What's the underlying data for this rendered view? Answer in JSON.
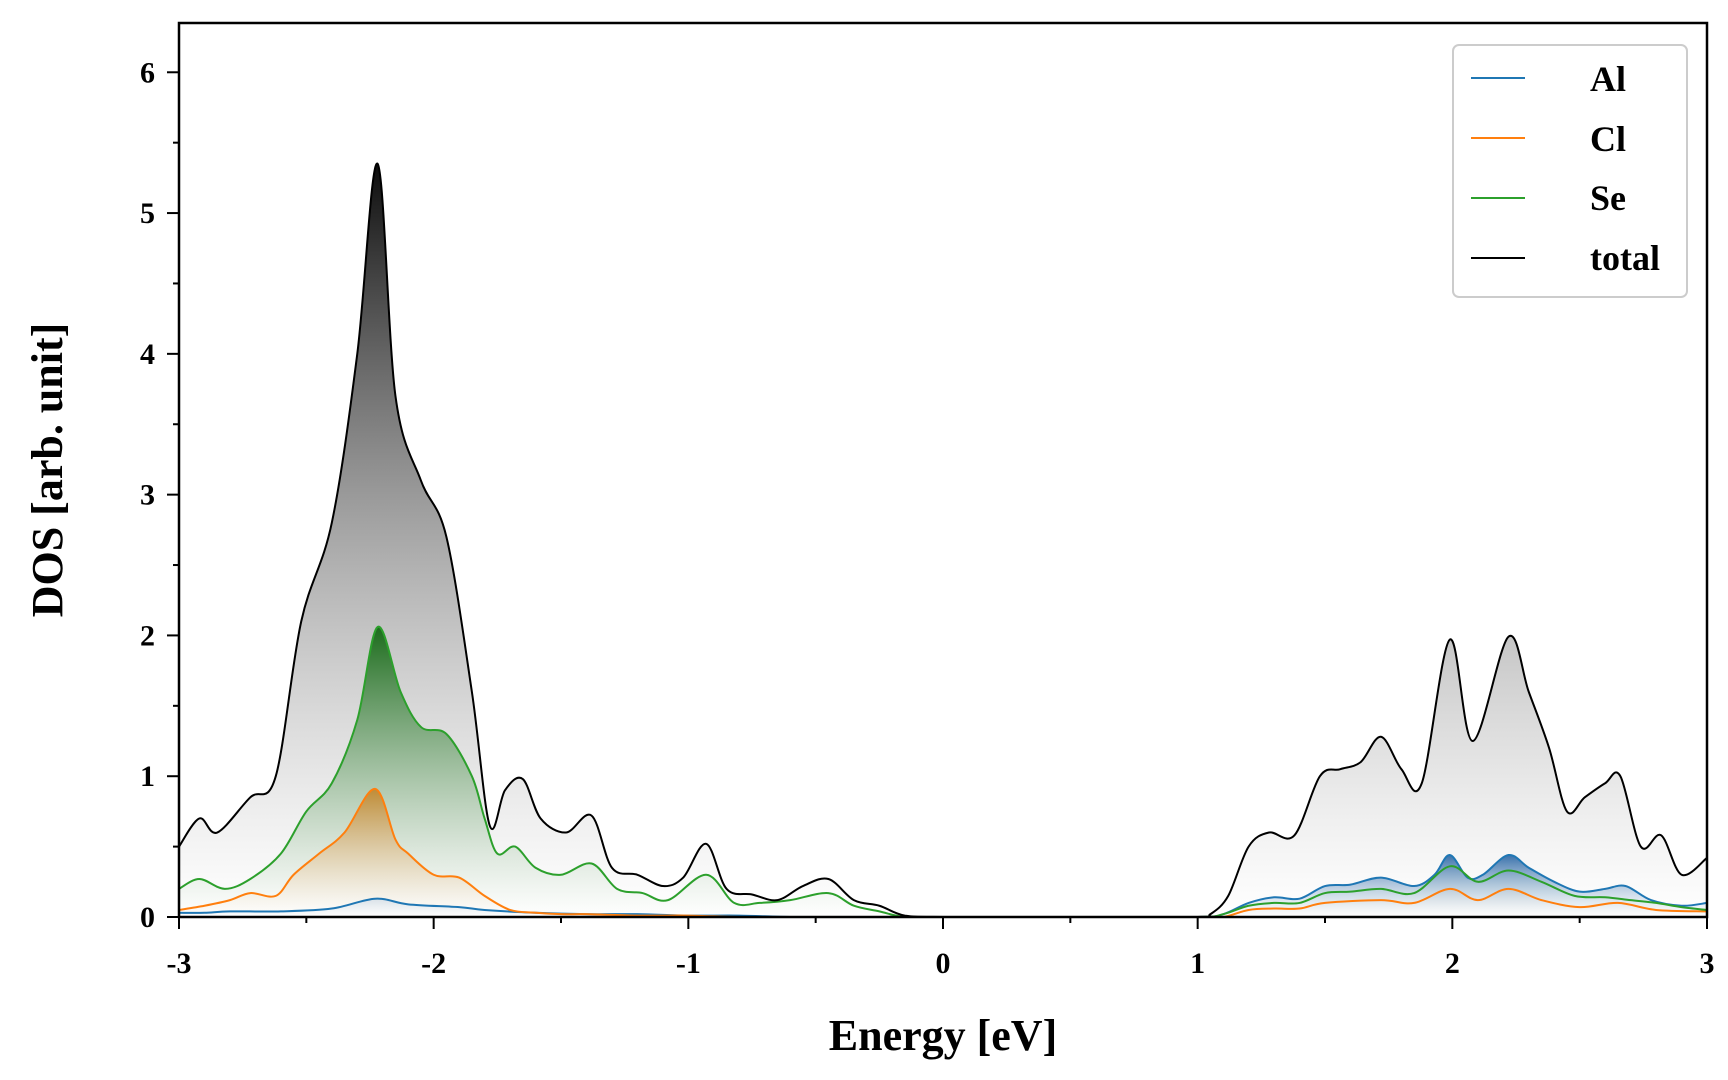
{
  "chart_data": {
    "type": "area",
    "xlabel": "Energy [eV]",
    "ylabel": "DOS [arb. unit]",
    "xlim": [
      -3,
      3
    ],
    "ylim": [
      0,
      6.35
    ],
    "xticks": [
      -3,
      -2,
      -1,
      0,
      1,
      2,
      3
    ],
    "xtick_labels": [
      "-3",
      "-2",
      "-1",
      "0",
      "1",
      "2",
      "3"
    ],
    "yticks": [
      0,
      1,
      2,
      3,
      4,
      5,
      6
    ],
    "ytick_labels": [
      "0",
      "1",
      "2",
      "3",
      "4",
      "5",
      "6"
    ],
    "grid": false,
    "legend_position": "top-right",
    "series": [
      {
        "name": "Al",
        "color": "#1f77b4",
        "x": [
          -3.0,
          -2.9,
          -2.8,
          -2.6,
          -2.4,
          -2.23,
          -2.1,
          -1.9,
          -1.8,
          -1.6,
          -1.4,
          -1.2,
          -1.0,
          -0.8,
          -0.6,
          -0.4,
          -0.2,
          -0.1,
          0.0,
          0.5,
          1.0,
          1.1,
          1.2,
          1.3,
          1.4,
          1.5,
          1.6,
          1.72,
          1.85,
          1.93,
          1.99,
          2.06,
          2.12,
          2.22,
          2.3,
          2.4,
          2.5,
          2.6,
          2.68,
          2.78,
          2.9,
          3.0
        ],
        "values": [
          0.03,
          0.03,
          0.04,
          0.04,
          0.06,
          0.13,
          0.09,
          0.07,
          0.05,
          0.03,
          0.02,
          0.02,
          0.01,
          0.01,
          0.0,
          0.0,
          0.0,
          0.0,
          0.0,
          0.0,
          0.0,
          0.02,
          0.1,
          0.14,
          0.13,
          0.22,
          0.23,
          0.28,
          0.22,
          0.3,
          0.44,
          0.28,
          0.3,
          0.44,
          0.35,
          0.25,
          0.18,
          0.2,
          0.22,
          0.12,
          0.08,
          0.1
        ]
      },
      {
        "name": "Cl",
        "color": "#ff7f0e",
        "x": [
          -3.0,
          -2.9,
          -2.8,
          -2.72,
          -2.62,
          -2.55,
          -2.45,
          -2.35,
          -2.23,
          -2.15,
          -2.1,
          -2.0,
          -1.9,
          -1.8,
          -1.7,
          -1.6,
          -1.5,
          -1.4,
          -1.2,
          -1.0,
          -0.8,
          -0.6,
          -0.4,
          -0.2,
          0.0,
          0.5,
          1.0,
          1.1,
          1.2,
          1.3,
          1.4,
          1.5,
          1.72,
          1.85,
          1.99,
          2.1,
          2.22,
          2.35,
          2.5,
          2.65,
          2.8,
          3.0
        ],
        "values": [
          0.05,
          0.08,
          0.12,
          0.17,
          0.15,
          0.3,
          0.45,
          0.6,
          0.91,
          0.55,
          0.45,
          0.3,
          0.28,
          0.15,
          0.05,
          0.03,
          0.02,
          0.02,
          0.01,
          0.01,
          0.0,
          0.0,
          0.0,
          0.0,
          0.0,
          0.0,
          0.0,
          0.0,
          0.05,
          0.06,
          0.06,
          0.1,
          0.12,
          0.1,
          0.2,
          0.12,
          0.2,
          0.12,
          0.07,
          0.1,
          0.05,
          0.04
        ]
      },
      {
        "name": "Se",
        "color": "#2ca02c",
        "x": [
          -3.0,
          -2.92,
          -2.82,
          -2.72,
          -2.6,
          -2.5,
          -2.4,
          -2.3,
          -2.22,
          -2.13,
          -2.05,
          -1.95,
          -1.85,
          -1.8,
          -1.75,
          -1.68,
          -1.6,
          -1.5,
          -1.38,
          -1.28,
          -1.18,
          -1.08,
          -0.93,
          -0.82,
          -0.72,
          -0.6,
          -0.45,
          -0.35,
          -0.25,
          -0.15,
          0.0,
          0.5,
          1.0,
          1.1,
          1.2,
          1.3,
          1.4,
          1.5,
          1.6,
          1.72,
          1.85,
          1.99,
          2.1,
          2.22,
          2.35,
          2.48,
          2.6,
          2.7,
          2.8,
          2.9,
          3.0
        ],
        "values": [
          0.2,
          0.27,
          0.2,
          0.27,
          0.45,
          0.75,
          0.95,
          1.4,
          2.06,
          1.6,
          1.35,
          1.3,
          1.0,
          0.7,
          0.45,
          0.5,
          0.35,
          0.3,
          0.38,
          0.2,
          0.17,
          0.12,
          0.3,
          0.1,
          0.1,
          0.12,
          0.17,
          0.08,
          0.04,
          0.0,
          0.0,
          0.0,
          0.0,
          0.02,
          0.08,
          0.1,
          0.1,
          0.17,
          0.18,
          0.2,
          0.17,
          0.36,
          0.25,
          0.33,
          0.25,
          0.15,
          0.14,
          0.12,
          0.1,
          0.07,
          0.05
        ]
      },
      {
        "name": "total",
        "color": "#000000",
        "x": [
          -3.0,
          -2.92,
          -2.85,
          -2.72,
          -2.62,
          -2.52,
          -2.4,
          -2.3,
          -2.22,
          -2.15,
          -2.05,
          -1.95,
          -1.85,
          -1.78,
          -1.72,
          -1.65,
          -1.58,
          -1.48,
          -1.38,
          -1.3,
          -1.2,
          -1.1,
          -1.02,
          -0.93,
          -0.85,
          -0.75,
          -0.65,
          -0.55,
          -0.45,
          -0.35,
          -0.25,
          -0.15,
          0.0,
          0.5,
          1.0,
          1.05,
          1.12,
          1.2,
          1.28,
          1.38,
          1.48,
          1.56,
          1.64,
          1.72,
          1.8,
          1.88,
          1.99,
          2.08,
          2.22,
          2.3,
          2.38,
          2.45,
          2.52,
          2.6,
          2.66,
          2.74,
          2.82,
          2.9,
          3.0
        ],
        "values": [
          0.5,
          0.7,
          0.6,
          0.85,
          1.0,
          2.1,
          2.8,
          4.0,
          5.35,
          3.7,
          3.1,
          2.7,
          1.6,
          0.65,
          0.9,
          0.98,
          0.7,
          0.6,
          0.72,
          0.35,
          0.3,
          0.22,
          0.28,
          0.52,
          0.2,
          0.16,
          0.12,
          0.22,
          0.27,
          0.12,
          0.08,
          0.01,
          0.0,
          0.0,
          0.0,
          0.02,
          0.15,
          0.5,
          0.6,
          0.58,
          1.0,
          1.05,
          1.1,
          1.28,
          1.05,
          0.95,
          1.97,
          1.25,
          1.99,
          1.6,
          1.2,
          0.75,
          0.85,
          0.95,
          1.0,
          0.5,
          0.58,
          0.3,
          0.42
        ]
      }
    ]
  }
}
